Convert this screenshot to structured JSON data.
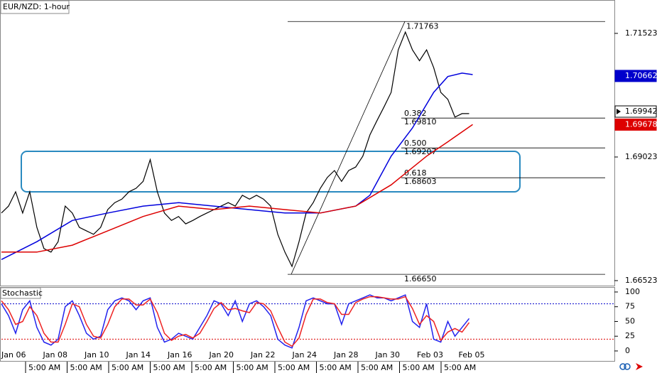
{
  "chart_data": [
    {
      "type": "line",
      "title": "EUR/NZD: 1-hour",
      "xlim": [
        0,
        86.5
      ],
      "ylim": [
        1.66422,
        1.72198
      ],
      "yticks": [
        1.71523,
        1.69023,
        1.66523
      ],
      "series": [
        {
          "color": "#000000",
          "values": [
            1.6789,
            1.6803,
            1.6832,
            1.6789,
            1.6832,
            1.676,
            1.6717,
            1.671,
            1.6731,
            1.6803,
            1.6789,
            1.676,
            1.6753,
            1.6746,
            1.676,
            1.6796,
            1.681,
            1.6817,
            1.6832,
            1.6839,
            1.6853,
            1.6897,
            1.6832,
            1.6789,
            1.6774,
            1.6782,
            1.6767,
            1.6774,
            1.6782,
            1.6789,
            1.6796,
            1.6803,
            1.681,
            1.6803,
            1.6825,
            1.6817,
            1.6825,
            1.6817,
            1.6803,
            1.6746,
            1.671,
            1.6681,
            1.6731,
            1.6789,
            1.681,
            1.6839,
            1.6861,
            1.6875,
            1.6853,
            1.6875,
            1.6882,
            1.6904,
            1.6947,
            1.6976,
            1.7004,
            1.7033,
            1.7119,
            1.7155,
            1.7119,
            1.7097,
            1.7119,
            1.7083,
            1.7033,
            1.7019,
            1.6983,
            1.699,
            1.699
          ]
        },
        {
          "color": "#0000dd",
          "x": [
            0,
            5,
            10,
            15,
            20,
            25,
            30,
            35,
            40,
            45,
            50,
            52,
            55,
            58,
            61,
            63,
            65,
            66.5
          ],
          "values": [
            1.6695,
            1.6731,
            1.6774,
            1.6789,
            1.6803,
            1.681,
            1.6803,
            1.6796,
            1.6789,
            1.6789,
            1.6803,
            1.6825,
            1.6904,
            1.6961,
            1.7033,
            1.7065,
            1.7072,
            1.7069
          ]
        },
        {
          "color": "#dd0000",
          "x": [
            0,
            5,
            10,
            15,
            20,
            25,
            30,
            35,
            40,
            45,
            50,
            55,
            60,
            63,
            66.5
          ],
          "values": [
            1.671,
            1.671,
            1.6724,
            1.6753,
            1.6782,
            1.6803,
            1.6796,
            1.6803,
            1.6796,
            1.6789,
            1.6803,
            1.6846,
            1.6904,
            1.6933,
            1.6968
          ]
        }
      ],
      "price_tags": [
        {
          "value": 1.70662,
          "color": "#0000cc",
          "filled": true
        },
        {
          "value": 1.69942,
          "color": "#000000",
          "filled": false
        },
        {
          "value": 1.69678,
          "color": "#dd0000",
          "filled": true
        }
      ],
      "fib": {
        "high": 1.71763,
        "low": {
          "value": 1.6665,
          "label": "1.66650"
        },
        "levels": [
          {
            "ratio": "0.382",
            "price": {
              "value": 1.6981,
              "label": "1.69810"
            }
          },
          {
            "ratio": "0.500",
            "price": 1.69207
          },
          {
            "ratio": "0.618",
            "price": 1.68603
          }
        ]
      }
    },
    {
      "type": "line",
      "title": "Stochastic",
      "xlim": [
        0,
        86.5
      ],
      "ylim": [
        -13.3,
        108.4
      ],
      "yticks": [
        100,
        75,
        50,
        25,
        0
      ],
      "levels": [
        {
          "value": 80,
          "color": "#0000cc"
        },
        {
          "value": 20,
          "color": "#dd0000"
        }
      ],
      "series": [
        {
          "color": "#2222ee",
          "values": [
            80,
            60,
            30,
            70,
            85,
            40,
            15,
            10,
            20,
            75,
            85,
            60,
            30,
            20,
            25,
            70,
            85,
            90,
            85,
            70,
            85,
            90,
            40,
            15,
            20,
            30,
            25,
            20,
            40,
            60,
            85,
            80,
            60,
            85,
            50,
            80,
            85,
            75,
            60,
            20,
            10,
            5,
            40,
            85,
            90,
            85,
            80,
            80,
            45,
            80,
            85,
            90,
            95,
            90,
            90,
            85,
            90,
            95,
            50,
            40,
            80,
            20,
            15,
            50,
            25,
            40,
            55
          ]
        },
        {
          "color": "#ee2222",
          "values": [
            85,
            70,
            45,
            50,
            75,
            60,
            30,
            15,
            15,
            45,
            80,
            75,
            45,
            25,
            22,
            45,
            75,
            88,
            88,
            78,
            78,
            88,
            65,
            30,
            18,
            25,
            28,
            22,
            30,
            50,
            72,
            82,
            70,
            72,
            68,
            65,
            82,
            80,
            68,
            40,
            15,
            8,
            22,
            62,
            88,
            88,
            82,
            80,
            62,
            62,
            82,
            88,
            92,
            92,
            90,
            88,
            88,
            92,
            72,
            45,
            60,
            50,
            18,
            32,
            38,
            32,
            48
          ]
        }
      ],
      "x_date_labels": [
        "Jan 06",
        "Jan 08",
        "Jan 10",
        "Jan 14",
        "Jan 16",
        "Jan 20",
        "Jan 22",
        "Jan 24",
        "Jan 28",
        "Jan 30",
        "Feb 03",
        "Feb 05"
      ],
      "x_time_labels": [
        "5:00 AM",
        "5:00 AM",
        "5:00 AM",
        "5:00 AM",
        "5:00 AM",
        "5:00 AM",
        "5:00 AM",
        "5:00 AM",
        "5:00 AM",
        "5:00 AM",
        "5:00 AM"
      ]
    }
  ]
}
